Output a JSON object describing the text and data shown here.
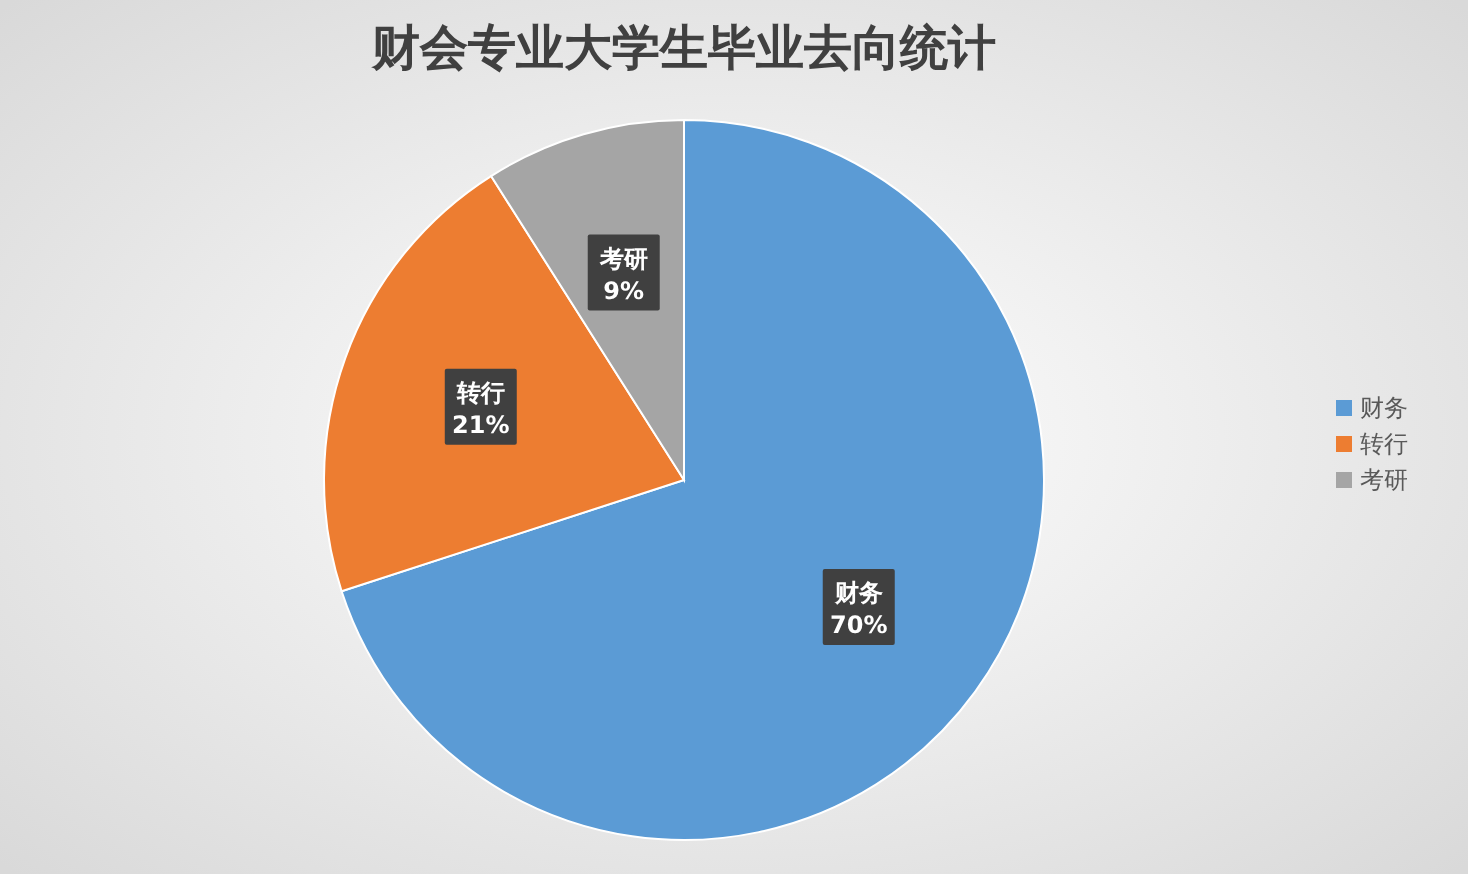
{
  "chart_data": {
    "type": "pie",
    "title": "财会专业大学生毕业去向统计",
    "categories": [
      "财务",
      "转行",
      "考研"
    ],
    "values": [
      70,
      21,
      9
    ],
    "colors": [
      "#5b9bd5",
      "#ed7d31",
      "#a5a5a5"
    ],
    "value_labels": [
      "70%",
      "21%",
      "9%"
    ],
    "legend": "right"
  }
}
